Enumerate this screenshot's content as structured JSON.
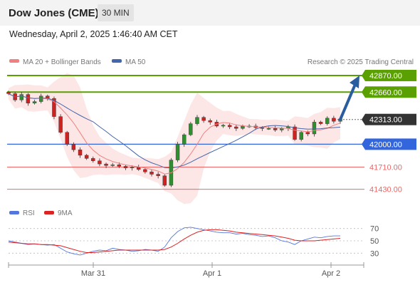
{
  "header": {
    "title": "Dow Jones (CME)",
    "timeframe": "30 MIN",
    "datetime": "Wednesday, April 2, 2025 1:46:40 AM CET"
  },
  "legend": {
    "ma20_label": "MA 20 + Bollinger Bands",
    "ma50_label": "MA 50",
    "copyright": "Research © 2025 Trading Central",
    "rsi_label": "RSI",
    "ma9_label": "9MA"
  },
  "colors": {
    "bull_candle": "#2f8f2f",
    "bear_candle": "#cc2222",
    "ma20": "#f08080",
    "ma50": "#4466aa",
    "bollinger_fill": "#fde2e2",
    "resistance": "#5aa000",
    "pivot": "#3366dd",
    "support": "#ee6666",
    "last_price": "#333333",
    "rsi": "#5577dd",
    "rsi_ma": "#dd2222",
    "arrow": "#2a5d9e"
  },
  "chart_data": {
    "type": "candlestick",
    "x_labels": [
      "Mar 31",
      "Apr 1",
      "Apr 2"
    ],
    "price_axis": {
      "min": 41300,
      "max": 42960
    },
    "levels": [
      {
        "role": "resistance",
        "value": 42870,
        "label": "42870.00"
      },
      {
        "role": "resistance",
        "value": 42660,
        "label": "42660.00"
      },
      {
        "role": "last",
        "value": 42313,
        "label": "42313.00"
      },
      {
        "role": "pivot",
        "value": 42000,
        "label": "42000.00"
      },
      {
        "role": "support",
        "value": 41710,
        "label": "41710.00"
      },
      {
        "role": "support",
        "value": 41430,
        "label": "41430.00"
      }
    ],
    "projection": {
      "from": 42313,
      "to": 42870
    },
    "price_path": [
      42640,
      42560,
      42630,
      42520,
      42540,
      42610,
      42580,
      42350,
      42150,
      42000,
      41930,
      41860,
      41820,
      41790,
      41750,
      41730,
      41740,
      41720,
      41700,
      41710,
      41680,
      41650,
      41620,
      41600,
      41480,
      41800,
      42000,
      42120,
      42260,
      42340,
      42300,
      42280,
      42230,
      42240,
      42220,
      42200,
      42230,
      42230,
      42210,
      42200,
      42200,
      42180,
      42200,
      42220,
      42060,
      42150,
      42130,
      42280,
      42260,
      42330,
      42290,
      42320
    ],
    "rsi": {
      "axis_labels": [
        "70",
        "50",
        "30"
      ],
      "range": [
        20,
        80
      ],
      "rsi_values": [
        50,
        48,
        46,
        44,
        45,
        44,
        43,
        44,
        38,
        32,
        29,
        27,
        30,
        33,
        35,
        34,
        38,
        36,
        35,
        33,
        34,
        36,
        35,
        33,
        40,
        55,
        65,
        71,
        72,
        70,
        68,
        66,
        64,
        63,
        63,
        61,
        62,
        60,
        59,
        57,
        58,
        55,
        50,
        48,
        44,
        50,
        53,
        56,
        55,
        57,
        58,
        58
      ],
      "ma_values": [
        48,
        47,
        46,
        45,
        45,
        44,
        44,
        43,
        42,
        39,
        36,
        33,
        31,
        31,
        32,
        33,
        34,
        35,
        35,
        35,
        35,
        35,
        35,
        35,
        36,
        40,
        46,
        53,
        59,
        64,
        67,
        68,
        68,
        67,
        66,
        64,
        63,
        62,
        61,
        60,
        59,
        58,
        56,
        54,
        51,
        50,
        50,
        50,
        51,
        52,
        53,
        54
      ]
    }
  }
}
